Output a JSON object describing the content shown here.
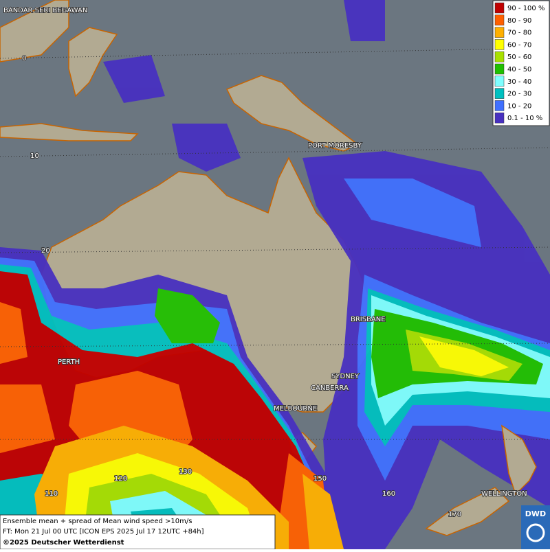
{
  "map": {
    "places": [
      "BANDAR SERI BEGAWAN",
      "PORT MORESBY",
      "BRISBANE",
      "SYDNEY",
      "CANBERRA",
      "MELBOURNE",
      "PERTH",
      "WELLINGTON"
    ],
    "latitudes": [
      "0",
      "10",
      "20"
    ],
    "longitudes": [
      "110",
      "120",
      "130",
      "150",
      "160",
      "170"
    ]
  },
  "legend": {
    "entries": [
      {
        "label": "90 - 100 %",
        "color": "#c00000"
      },
      {
        "label": "80 - 90",
        "color": "#ff6000"
      },
      {
        "label": "70 - 80",
        "color": "#ffb000"
      },
      {
        "label": "60 - 70",
        "color": "#ffff00"
      },
      {
        "label": "50 - 60",
        "color": "#a8e000"
      },
      {
        "label": "40 - 50",
        "color": "#20c000"
      },
      {
        "label": "30 - 40",
        "color": "#80ffff"
      },
      {
        "label": "20 - 30",
        "color": "#00c0c0"
      },
      {
        "label": "10 - 20",
        "color": "#4070ff"
      },
      {
        "label": "0.1 - 10 %",
        "color": "#4830c0"
      }
    ]
  },
  "footer": {
    "title": "Ensemble mean + spread of Mean wind speed >10m/s",
    "forecast": "FT: Mon 21 Jul 00 UTC [ICON EPS 2025 Jul 17 12UTC +84h]",
    "copyright": "©2025 Deutscher Wetterdienst",
    "logo": "DWD"
  }
}
